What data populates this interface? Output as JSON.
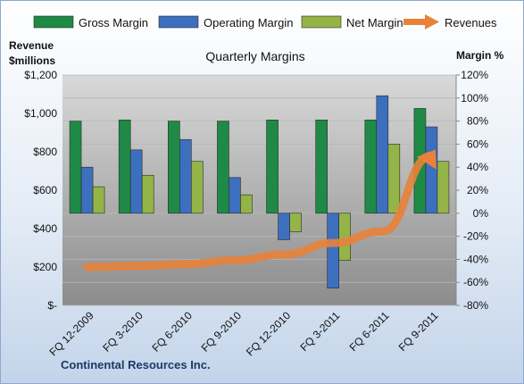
{
  "chart_data": {
    "type": "bar",
    "title": "Quarterly Margins",
    "left_axis_title_lines": [
      "Revenue",
      "$millions"
    ],
    "right_axis_title": "Margin %",
    "source": "Continental Resources Inc.",
    "categories": [
      "FQ 12-2009",
      "FQ 3-2010",
      "FQ 6-2010",
      "FQ 9-2010",
      "FQ 12-2010",
      "FQ 3-2011",
      "FQ 6-2011",
      "FQ 9-2011"
    ],
    "left_axis": {
      "ylim": [
        0,
        1200
      ],
      "ticks": [
        0,
        200,
        400,
        600,
        800,
        1000,
        1200
      ],
      "tick_labels": [
        "$-",
        "$200",
        "$400",
        "$600",
        "$800",
        "$1,000",
        "$1,200"
      ]
    },
    "right_axis": {
      "ylim": [
        -80,
        120
      ],
      "ticks": [
        -80,
        -60,
        -40,
        -20,
        0,
        20,
        40,
        60,
        80,
        100,
        120
      ],
      "tick_labels": [
        "-80%",
        "-60%",
        "-40%",
        "-20%",
        "0%",
        "20%",
        "40%",
        "60%",
        "80%",
        "100%",
        "120%"
      ]
    },
    "series": [
      {
        "name": "Gross Margin",
        "type": "bar",
        "axis": "right",
        "color": "#1e8a46",
        "values": [
          80,
          81,
          80,
          80,
          81,
          81,
          81,
          91
        ]
      },
      {
        "name": "Operating Margin",
        "type": "bar",
        "axis": "right",
        "color": "#3d6fbf",
        "values": [
          40,
          55,
          64,
          31,
          -23,
          -65,
          102,
          75
        ]
      },
      {
        "name": "Net Margin",
        "type": "bar",
        "axis": "right",
        "color": "#94b447",
        "values": [
          23,
          33,
          45,
          16,
          -16,
          -41,
          60,
          45
        ]
      },
      {
        "name": "Revenues",
        "type": "line",
        "axis": "left",
        "color": "#e8823a",
        "values": [
          200,
          205,
          215,
          235,
          265,
          325,
          385,
          780
        ]
      }
    ],
    "grid": true,
    "legend_position": "top"
  }
}
